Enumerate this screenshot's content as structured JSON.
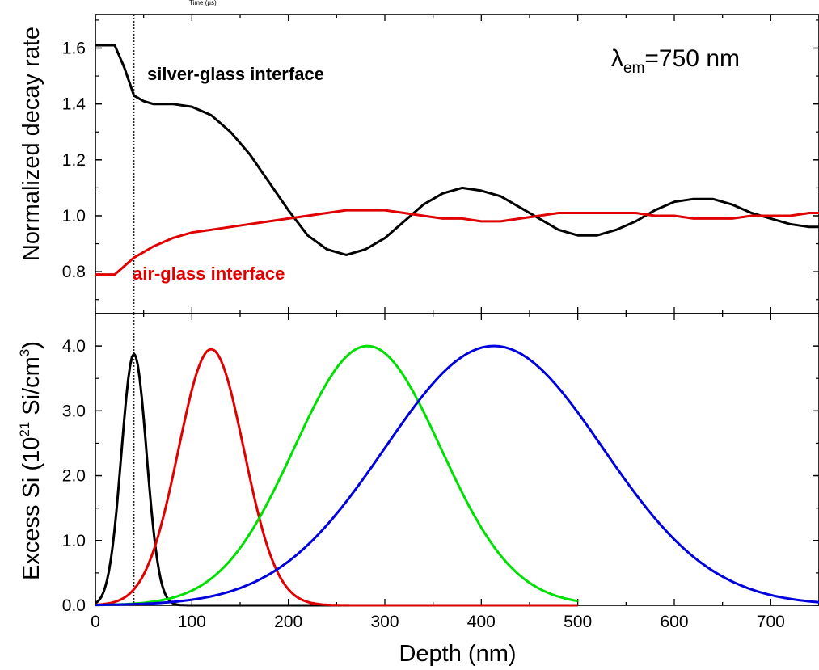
{
  "cropped_label": "Time (μs)",
  "chart_data": [
    {
      "type": "line",
      "ylabel": "Normalized decay rate",
      "xlim": [
        0,
        750
      ],
      "ylim": [
        0.65,
        1.72
      ],
      "yticks": [
        "0.8",
        "1.0",
        "1.2",
        "1.4",
        "1.6"
      ],
      "grid": false,
      "series": [
        {
          "color": "#000000",
          "x": [
            0,
            10,
            20,
            30,
            40,
            50,
            60,
            80,
            100,
            120,
            140,
            160,
            180,
            200,
            220,
            240,
            260,
            280,
            300,
            320,
            340,
            360,
            380,
            400,
            420,
            440,
            460,
            480,
            500,
            520,
            540,
            560,
            580,
            600,
            620,
            640,
            660,
            680,
            700,
            720,
            740,
            750
          ],
          "y": [
            1.61,
            1.61,
            1.61,
            1.53,
            1.43,
            1.41,
            1.4,
            1.4,
            1.39,
            1.36,
            1.3,
            1.22,
            1.12,
            1.02,
            0.93,
            0.88,
            0.86,
            0.88,
            0.92,
            0.98,
            1.04,
            1.08,
            1.1,
            1.09,
            1.07,
            1.03,
            0.99,
            0.95,
            0.93,
            0.93,
            0.95,
            0.98,
            1.02,
            1.05,
            1.06,
            1.06,
            1.04,
            1.01,
            0.99,
            0.97,
            0.96,
            0.96
          ]
        },
        {
          "color": "#e00000",
          "x": [
            0,
            10,
            20,
            30,
            40,
            50,
            60,
            80,
            100,
            120,
            140,
            160,
            180,
            200,
            220,
            240,
            260,
            280,
            300,
            320,
            340,
            360,
            380,
            400,
            420,
            440,
            460,
            480,
            500,
            520,
            540,
            560,
            580,
            600,
            620,
            640,
            660,
            680,
            700,
            720,
            740,
            750
          ],
          "y": [
            0.79,
            0.79,
            0.79,
            0.82,
            0.85,
            0.87,
            0.89,
            0.92,
            0.94,
            0.95,
            0.96,
            0.97,
            0.98,
            0.99,
            1.0,
            1.01,
            1.02,
            1.02,
            1.02,
            1.01,
            1.0,
            0.99,
            0.99,
            0.98,
            0.98,
            0.99,
            1.0,
            1.01,
            1.01,
            1.01,
            1.01,
            1.01,
            1.0,
            1.0,
            0.99,
            0.99,
            0.99,
            1.0,
            1.0,
            1.0,
            1.01,
            1.01
          ]
        }
      ],
      "annotations": [
        {
          "text": "silver-glass interface",
          "color": "#000000"
        },
        {
          "text": "air-glass interface",
          "color": "#e00000"
        }
      ],
      "lambda_label": {
        "symbol": "λ",
        "subscript": "em",
        "value": "=750 nm"
      },
      "reference_line_x": 40
    },
    {
      "type": "line",
      "xlabel": "Depth (nm)",
      "ylabel_prefix": "Excess Si (10",
      "ylabel_exp": "21",
      "ylabel_mid": " Si/cm",
      "ylabel_exp2": "3",
      "ylabel_suffix": ")",
      "xlim": [
        0,
        750
      ],
      "ylim": [
        0,
        4.5
      ],
      "xticks": [
        "0",
        "100",
        "200",
        "300",
        "400",
        "500",
        "600",
        "700"
      ],
      "yticks": [
        "0.0",
        "1.0",
        "2.0",
        "3.0",
        "4.0"
      ],
      "grid": false,
      "series": [
        {
          "color": "#000000",
          "shape": "gaussian",
          "center": 40,
          "peak": 3.88,
          "sigma": 13,
          "x_end": 500
        },
        {
          "color": "#e00000",
          "shape": "gaussian",
          "center": 120,
          "peak": 3.95,
          "sigma": 34,
          "x_end": 500
        },
        {
          "color": "#00e000",
          "shape": "gaussian",
          "center": 282,
          "peak": 4.0,
          "sigma": 76,
          "x_end": 500
        },
        {
          "color": "#0000dd",
          "shape": "gaussian",
          "center": 413,
          "peak": 4.0,
          "sigma": 113,
          "x_end": 750
        }
      ],
      "reference_line_x": 40
    }
  ]
}
